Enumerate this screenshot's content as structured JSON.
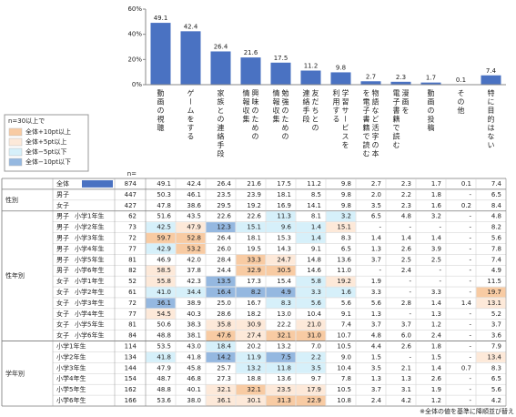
{
  "chart_data": {
    "type": "bar",
    "categories": [
      [
        "動画の視聴"
      ],
      [
        "ゲームをする"
      ],
      [
        "家族との連絡手段"
      ],
      [
        "興味のための",
        "情報収集"
      ],
      [
        "勉強のための",
        "情報収集"
      ],
      [
        "友だちとの",
        "連絡手段"
      ],
      [
        "学習サービスを",
        "利用する"
      ],
      [
        "物語など活字の本",
        "を電子書籍で読む"
      ],
      [
        "漫画を",
        "電子書籍で読む"
      ],
      [
        "動画の投稿"
      ],
      [
        "その他"
      ],
      [
        "特に目的はない"
      ]
    ],
    "values": [
      49.1,
      42.4,
      26.4,
      21.6,
      17.5,
      11.2,
      9.8,
      2.7,
      2.3,
      1.7,
      0.1,
      7.4
    ],
    "color": "#4a72c2",
    "ylim": [
      0,
      60
    ],
    "yticks": [
      {
        "value": 0,
        "label": "0%"
      },
      {
        "value": 20,
        "label": "20%"
      },
      {
        "value": 40,
        "label": "40%"
      },
      {
        "value": 60,
        "label": "60%"
      }
    ]
  },
  "legend": {
    "title": "n=30以上で",
    "items": [
      {
        "label": "全体+10pt以上",
        "color": "#f8cba3"
      },
      {
        "label": "全体+5pt以上",
        "color": "#fde9d9"
      },
      {
        "label": "全体−5pt以下",
        "color": "#d6f0fa"
      },
      {
        "label": "全体−10pt以下",
        "color": "#95b8e0"
      }
    ]
  },
  "table": {
    "n_label": "n=",
    "overall": {
      "label": "全体",
      "n": "874",
      "values": [
        "49.1",
        "42.4",
        "26.4",
        "21.6",
        "17.5",
        "11.2",
        "9.8",
        "2.7",
        "2.3",
        "1.7",
        "0.1",
        "7.4"
      ]
    },
    "groups": [
      {
        "label": "性別",
        "rows": [
          {
            "label": [
              "男子"
            ],
            "n": "447",
            "values": [
              "50.3",
              "46.1",
              "23.5",
              "23.9",
              "18.1",
              "8.5",
              "9.8",
              "2.0",
              "2.2",
              "1.8",
              "-",
              "6.5"
            ]
          },
          {
            "label": [
              "女子"
            ],
            "n": "427",
            "values": [
              "47.8",
              "38.6",
              "29.5",
              "19.2",
              "16.9",
              "14.1",
              "9.8",
              "3.5",
              "2.3",
              "1.6",
              "0.2",
              "8.4"
            ]
          }
        ]
      },
      {
        "label": "性年別",
        "rows": [
          {
            "label": [
              "男子",
              "小学1年生"
            ],
            "n": "62",
            "values": [
              "51.6",
              "43.5",
              "22.6",
              "22.6",
              "11.3",
              "8.1",
              "3.2",
              "6.5",
              "4.8",
              "3.2",
              "-",
              "4.8"
            ],
            "highlight": [
              null,
              null,
              null,
              null,
              "#d6f0fa",
              null,
              "#d6f0fa",
              null,
              null,
              null,
              null,
              null
            ]
          },
          {
            "label": [
              "男子",
              "小学2年生"
            ],
            "n": "73",
            "values": [
              "42.5",
              "47.9",
              "12.3",
              "15.1",
              "9.6",
              "1.4",
              "15.1",
              "-",
              "-",
              "-",
              "-",
              "8.2"
            ],
            "highlight": [
              "#d6f0fa",
              "#fde9d9",
              "#95b8e0",
              "#d6f0fa",
              "#d6f0fa",
              "#d6f0fa",
              "#fde9d9",
              null,
              null,
              null,
              null,
              null
            ]
          },
          {
            "label": [
              "男子",
              "小学3年生"
            ],
            "n": "72",
            "values": [
              "59.7",
              "52.8",
              "26.4",
              "18.1",
              "15.3",
              "1.4",
              "8.3",
              "1.4",
              "1.4",
              "1.4",
              "-",
              "5.6"
            ],
            "highlight": [
              "#f8cba3",
              "#f8cba3",
              null,
              null,
              null,
              "#d6f0fa",
              null,
              null,
              null,
              null,
              null,
              null
            ]
          },
          {
            "label": [
              "男子",
              "小学4年生"
            ],
            "n": "77",
            "values": [
              "42.9",
              "53.2",
              "26.0",
              "19.5",
              "14.3",
              "9.1",
              "6.5",
              "1.3",
              "2.6",
              "3.9",
              "-",
              "7.8"
            ],
            "highlight": [
              "#d6f0fa",
              "#f8cba3",
              null,
              null,
              null,
              null,
              null,
              null,
              null,
              null,
              null,
              null
            ]
          },
          {
            "label": [
              "男子",
              "小学5年生"
            ],
            "n": "81",
            "values": [
              "46.9",
              "42.0",
              "28.4",
              "33.3",
              "24.7",
              "14.8",
              "13.6",
              "3.7",
              "2.5",
              "2.5",
              "-",
              "7.4"
            ],
            "highlight": [
              null,
              null,
              null,
              "#f8cba3",
              "#fde9d9",
              null,
              null,
              null,
              null,
              null,
              null,
              null
            ]
          },
          {
            "label": [
              "男子",
              "小学6年生"
            ],
            "n": "82",
            "values": [
              "58.5",
              "37.8",
              "24.4",
              "32.9",
              "30.5",
              "14.6",
              "11.0",
              "-",
              "2.4",
              "-",
              "-",
              "4.9"
            ],
            "highlight": [
              "#fde9d9",
              null,
              null,
              "#f8cba3",
              "#f8cba3",
              null,
              null,
              null,
              null,
              null,
              null,
              null
            ]
          },
          {
            "label": [
              "女子",
              "小学1年生"
            ],
            "n": "52",
            "values": [
              "55.8",
              "42.3",
              "13.5",
              "17.3",
              "15.4",
              "5.8",
              "19.2",
              "1.9",
              "-",
              "-",
              "-",
              "11.5"
            ],
            "highlight": [
              "#fde9d9",
              null,
              "#95b8e0",
              null,
              null,
              "#d6f0fa",
              "#fde9d9",
              null,
              null,
              null,
              null,
              null
            ]
          },
          {
            "label": [
              "女子",
              "小学2年生"
            ],
            "n": "61",
            "values": [
              "41.0",
              "34.4",
              "16.4",
              "8.2",
              "4.9",
              "3.3",
              "1.6",
              "3.3",
              "-",
              "3.3",
              "-",
              "19.7"
            ],
            "highlight": [
              "#d6f0fa",
              "#d6f0fa",
              "#95b8e0",
              "#95b8e0",
              "#95b8e0",
              "#d6f0fa",
              "#d6f0fa",
              null,
              null,
              null,
              null,
              "#f8cba3"
            ]
          },
          {
            "label": [
              "女子",
              "小学3年生"
            ],
            "n": "72",
            "values": [
              "36.1",
              "38.9",
              "25.0",
              "16.7",
              "8.3",
              "5.6",
              "5.6",
              "5.6",
              "2.8",
              "1.4",
              "1.4",
              "13.1"
            ],
            "highlight": [
              "#95b8e0",
              null,
              null,
              null,
              "#d6f0fa",
              "#d6f0fa",
              null,
              null,
              null,
              null,
              null,
              "#fde9d9"
            ]
          },
          {
            "label": [
              "女子",
              "小学4年生"
            ],
            "n": "77",
            "values": [
              "54.5",
              "40.3",
              "28.6",
              "18.2",
              "13.0",
              "10.4",
              "9.1",
              "1.3",
              "-",
              "1.3",
              "-",
              "5.2"
            ],
            "highlight": [
              "#fde9d9",
              null,
              null,
              null,
              null,
              null,
              null,
              null,
              null,
              null,
              null,
              null
            ]
          },
          {
            "label": [
              "女子",
              "小学5年生"
            ],
            "n": "81",
            "values": [
              "50.6",
              "38.3",
              "35.8",
              "30.9",
              "22.2",
              "21.0",
              "7.4",
              "3.7",
              "3.7",
              "1.2",
              "-",
              "3.7"
            ],
            "highlight": [
              null,
              null,
              "#fde9d9",
              "#fde9d9",
              null,
              "#fde9d9",
              null,
              null,
              null,
              null,
              null,
              null
            ]
          },
          {
            "label": [
              "女子",
              "小学6年生"
            ],
            "n": "84",
            "values": [
              "48.8",
              "38.1",
              "47.6",
              "27.4",
              "32.1",
              "31.0",
              "10.7",
              "4.8",
              "6.0",
              "2.4",
              "-",
              "3.6"
            ],
            "highlight": [
              null,
              null,
              "#f8cba3",
              "#fde9d9",
              "#f8cba3",
              "#f8cba3",
              null,
              null,
              null,
              null,
              null,
              null
            ]
          }
        ]
      },
      {
        "label": "学年別",
        "rows": [
          {
            "label": [
              "小学1年生"
            ],
            "n": "114",
            "values": [
              "53.5",
              "43.0",
              "18.4",
              "20.2",
              "13.2",
              "7.0",
              "10.5",
              "4.4",
              "2.6",
              "1.8",
              "-",
              "7.9"
            ],
            "highlight": [
              null,
              null,
              "#d6f0fa",
              null,
              null,
              null,
              null,
              null,
              null,
              null,
              null,
              null
            ]
          },
          {
            "label": [
              "小学2年生"
            ],
            "n": "134",
            "values": [
              "41.8",
              "41.8",
              "14.2",
              "11.9",
              "7.5",
              "2.2",
              "9.0",
              "1.5",
              "-",
              "1.5",
              "-",
              "13.4"
            ],
            "highlight": [
              "#d6f0fa",
              null,
              "#95b8e0",
              "#d6f0fa",
              "#95b8e0",
              "#d6f0fa",
              null,
              null,
              null,
              null,
              null,
              "#fde9d9"
            ]
          },
          {
            "label": [
              "小学3年生"
            ],
            "n": "144",
            "values": [
              "47.9",
              "45.8",
              "25.7",
              "13.2",
              "11.8",
              "3.5",
              "10.4",
              "3.5",
              "2.1",
              "1.4",
              "0.7",
              "8.3"
            ],
            "highlight": [
              null,
              null,
              null,
              "#d6f0fa",
              "#d6f0fa",
              "#d6f0fa",
              null,
              null,
              null,
              null,
              null,
              null
            ]
          },
          {
            "label": [
              "小学4年生"
            ],
            "n": "154",
            "values": [
              "48.7",
              "46.8",
              "27.3",
              "18.8",
              "13.6",
              "9.7",
              "7.8",
              "1.3",
              "1.3",
              "2.6",
              "-",
              "6.5"
            ]
          },
          {
            "label": [
              "小学5年生"
            ],
            "n": "162",
            "values": [
              "48.8",
              "40.1",
              "32.1",
              "32.1",
              "23.5",
              "17.9",
              "10.5",
              "3.7",
              "3.1",
              "1.9",
              "-",
              "5.6"
            ],
            "highlight": [
              null,
              null,
              "#fde9d9",
              "#f8cba3",
              "#fde9d9",
              "#fde9d9",
              null,
              null,
              null,
              null,
              null,
              null
            ]
          },
          {
            "label": [
              "小学6年生"
            ],
            "n": "166",
            "values": [
              "53.6",
              "38.0",
              "36.1",
              "30.1",
              "31.3",
              "22.9",
              "10.8",
              "2.4",
              "4.2",
              "1.2",
              "-",
              "4.2"
            ],
            "highlight": [
              null,
              null,
              "#fde9d9",
              "#fde9d9",
              "#f8cba3",
              "#f8cba3",
              null,
              null,
              null,
              null,
              null,
              null
            ]
          }
        ]
      }
    ],
    "footnote": "※全体の値を基準に降順並び替え"
  }
}
